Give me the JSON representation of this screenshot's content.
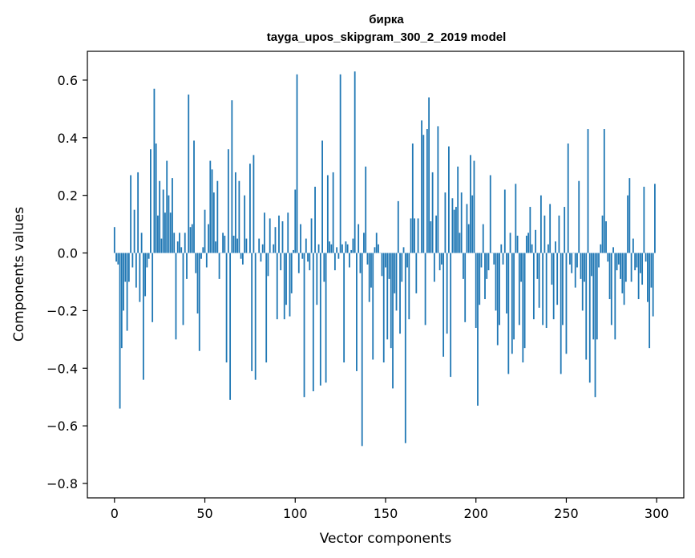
{
  "chart_data": {
    "type": "bar",
    "title": "бирка",
    "subtitle": "tayga_upos_skipgram_300_2_2019 model",
    "xlabel": "Vector components",
    "ylabel": "Components values",
    "xlim": [
      -15,
      315
    ],
    "ylim": [
      -0.85,
      0.7
    ],
    "xticks": [
      0,
      50,
      100,
      150,
      200,
      250,
      300
    ],
    "yticks": [
      -0.8,
      -0.6,
      -0.4,
      -0.2,
      0.0,
      0.2,
      0.4,
      0.6
    ],
    "xtick_labels": [
      "0",
      "50",
      "100",
      "150",
      "200",
      "250",
      "300"
    ],
    "ytick_labels": [
      "−0.8",
      "−0.6",
      "−0.4",
      "−0.2",
      "0.0",
      "0.2",
      "0.4",
      "0.6"
    ],
    "bar_color": "#1f77b4",
    "grid": false,
    "x": "0..299",
    "values": [
      0.09,
      -0.03,
      -0.04,
      -0.54,
      -0.33,
      -0.2,
      -0.1,
      -0.27,
      -0.1,
      0.27,
      -0.05,
      0.15,
      -0.12,
      0.28,
      -0.17,
      0.07,
      -0.44,
      -0.15,
      -0.05,
      -0.02,
      0.36,
      -0.24,
      0.57,
      0.38,
      0.13,
      0.25,
      0.05,
      0.22,
      0.14,
      0.32,
      0.2,
      0.14,
      0.26,
      0.07,
      -0.3,
      0.04,
      0.07,
      0.02,
      -0.25,
      0.07,
      -0.09,
      0.55,
      0.09,
      0.1,
      0.39,
      -0.07,
      -0.21,
      -0.34,
      -0.02,
      0.02,
      0.15,
      -0.05,
      0.1,
      0.32,
      0.29,
      0.21,
      0.04,
      0.25,
      -0.09,
      0.0,
      0.07,
      0.06,
      -0.38,
      0.36,
      -0.51,
      0.53,
      0.06,
      0.28,
      0.05,
      0.25,
      -0.02,
      -0.04,
      0.2,
      0.05,
      0.0,
      0.31,
      -0.41,
      0.34,
      -0.44,
      0.0,
      0.05,
      -0.03,
      0.03,
      0.14,
      -0.38,
      -0.08,
      0.12,
      0.0,
      0.03,
      0.09,
      -0.23,
      0.13,
      -0.06,
      0.11,
      -0.23,
      -0.18,
      0.14,
      -0.22,
      -0.14,
      0.01,
      0.22,
      0.62,
      -0.07,
      0.1,
      -0.02,
      -0.5,
      0.05,
      -0.03,
      -0.06,
      0.12,
      -0.48,
      0.23,
      -0.18,
      0.03,
      -0.46,
      0.39,
      -0.1,
      -0.45,
      0.27,
      0.04,
      0.03,
      0.28,
      -0.06,
      0.02,
      -0.02,
      0.62,
      0.03,
      -0.38,
      0.04,
      0.03,
      -0.05,
      0.01,
      0.05,
      0.63,
      -0.41,
      0.1,
      -0.07,
      -0.67,
      0.07,
      0.3,
      -0.04,
      -0.17,
      -0.12,
      -0.37,
      0.02,
      0.07,
      0.03,
      0.0,
      -0.08,
      -0.38,
      -0.05,
      -0.3,
      -0.09,
      -0.33,
      -0.47,
      -0.14,
      -0.2,
      0.18,
      -0.28,
      -0.1,
      0.02,
      -0.66,
      -0.05,
      -0.23,
      0.12,
      0.38,
      0.12,
      -0.14,
      0.12,
      0.0,
      0.46,
      0.41,
      -0.25,
      0.43,
      0.54,
      0.11,
      0.28,
      -0.1,
      0.13,
      0.44,
      -0.06,
      -0.04,
      -0.36,
      0.21,
      -0.28,
      0.37,
      -0.43,
      0.19,
      0.15,
      0.16,
      0.3,
      0.07,
      0.21,
      -0.09,
      -0.24,
      0.17,
      0.1,
      0.34,
      0.2,
      0.32,
      -0.26,
      -0.53,
      -0.18,
      -0.05,
      0.1,
      -0.16,
      -0.09,
      -0.06,
      0.27,
      0.0,
      -0.04,
      -0.2,
      -0.32,
      -0.25,
      0.03,
      -0.04,
      0.22,
      -0.21,
      -0.42,
      0.07,
      -0.35,
      -0.3,
      0.24,
      0.06,
      -0.25,
      -0.1,
      -0.38,
      -0.33,
      0.06,
      0.07,
      0.16,
      0.03,
      -0.23,
      0.08,
      -0.09,
      -0.19,
      0.2,
      -0.25,
      0.13,
      -0.26,
      0.03,
      0.17,
      -0.11,
      -0.23,
      0.04,
      -0.18,
      0.13,
      -0.42,
      -0.25,
      0.16,
      -0.35,
      0.38,
      -0.04,
      -0.07,
      0.0,
      -0.12,
      -0.05,
      0.25,
      -0.09,
      -0.2,
      -0.1,
      -0.37,
      0.43,
      -0.45,
      -0.08,
      -0.3,
      -0.5,
      -0.3,
      -0.05,
      0.03,
      0.13,
      0.43,
      0.11,
      -0.03,
      -0.16,
      -0.25,
      0.02,
      -0.3,
      -0.06,
      -0.04,
      -0.09,
      -0.14,
      -0.18,
      -0.1,
      0.2,
      0.26,
      -0.1,
      0.05,
      -0.06,
      -0.05,
      -0.16,
      -0.07,
      -0.11,
      0.23,
      -0.03,
      -0.17,
      -0.33,
      -0.12,
      -0.22,
      0.24
    ]
  }
}
